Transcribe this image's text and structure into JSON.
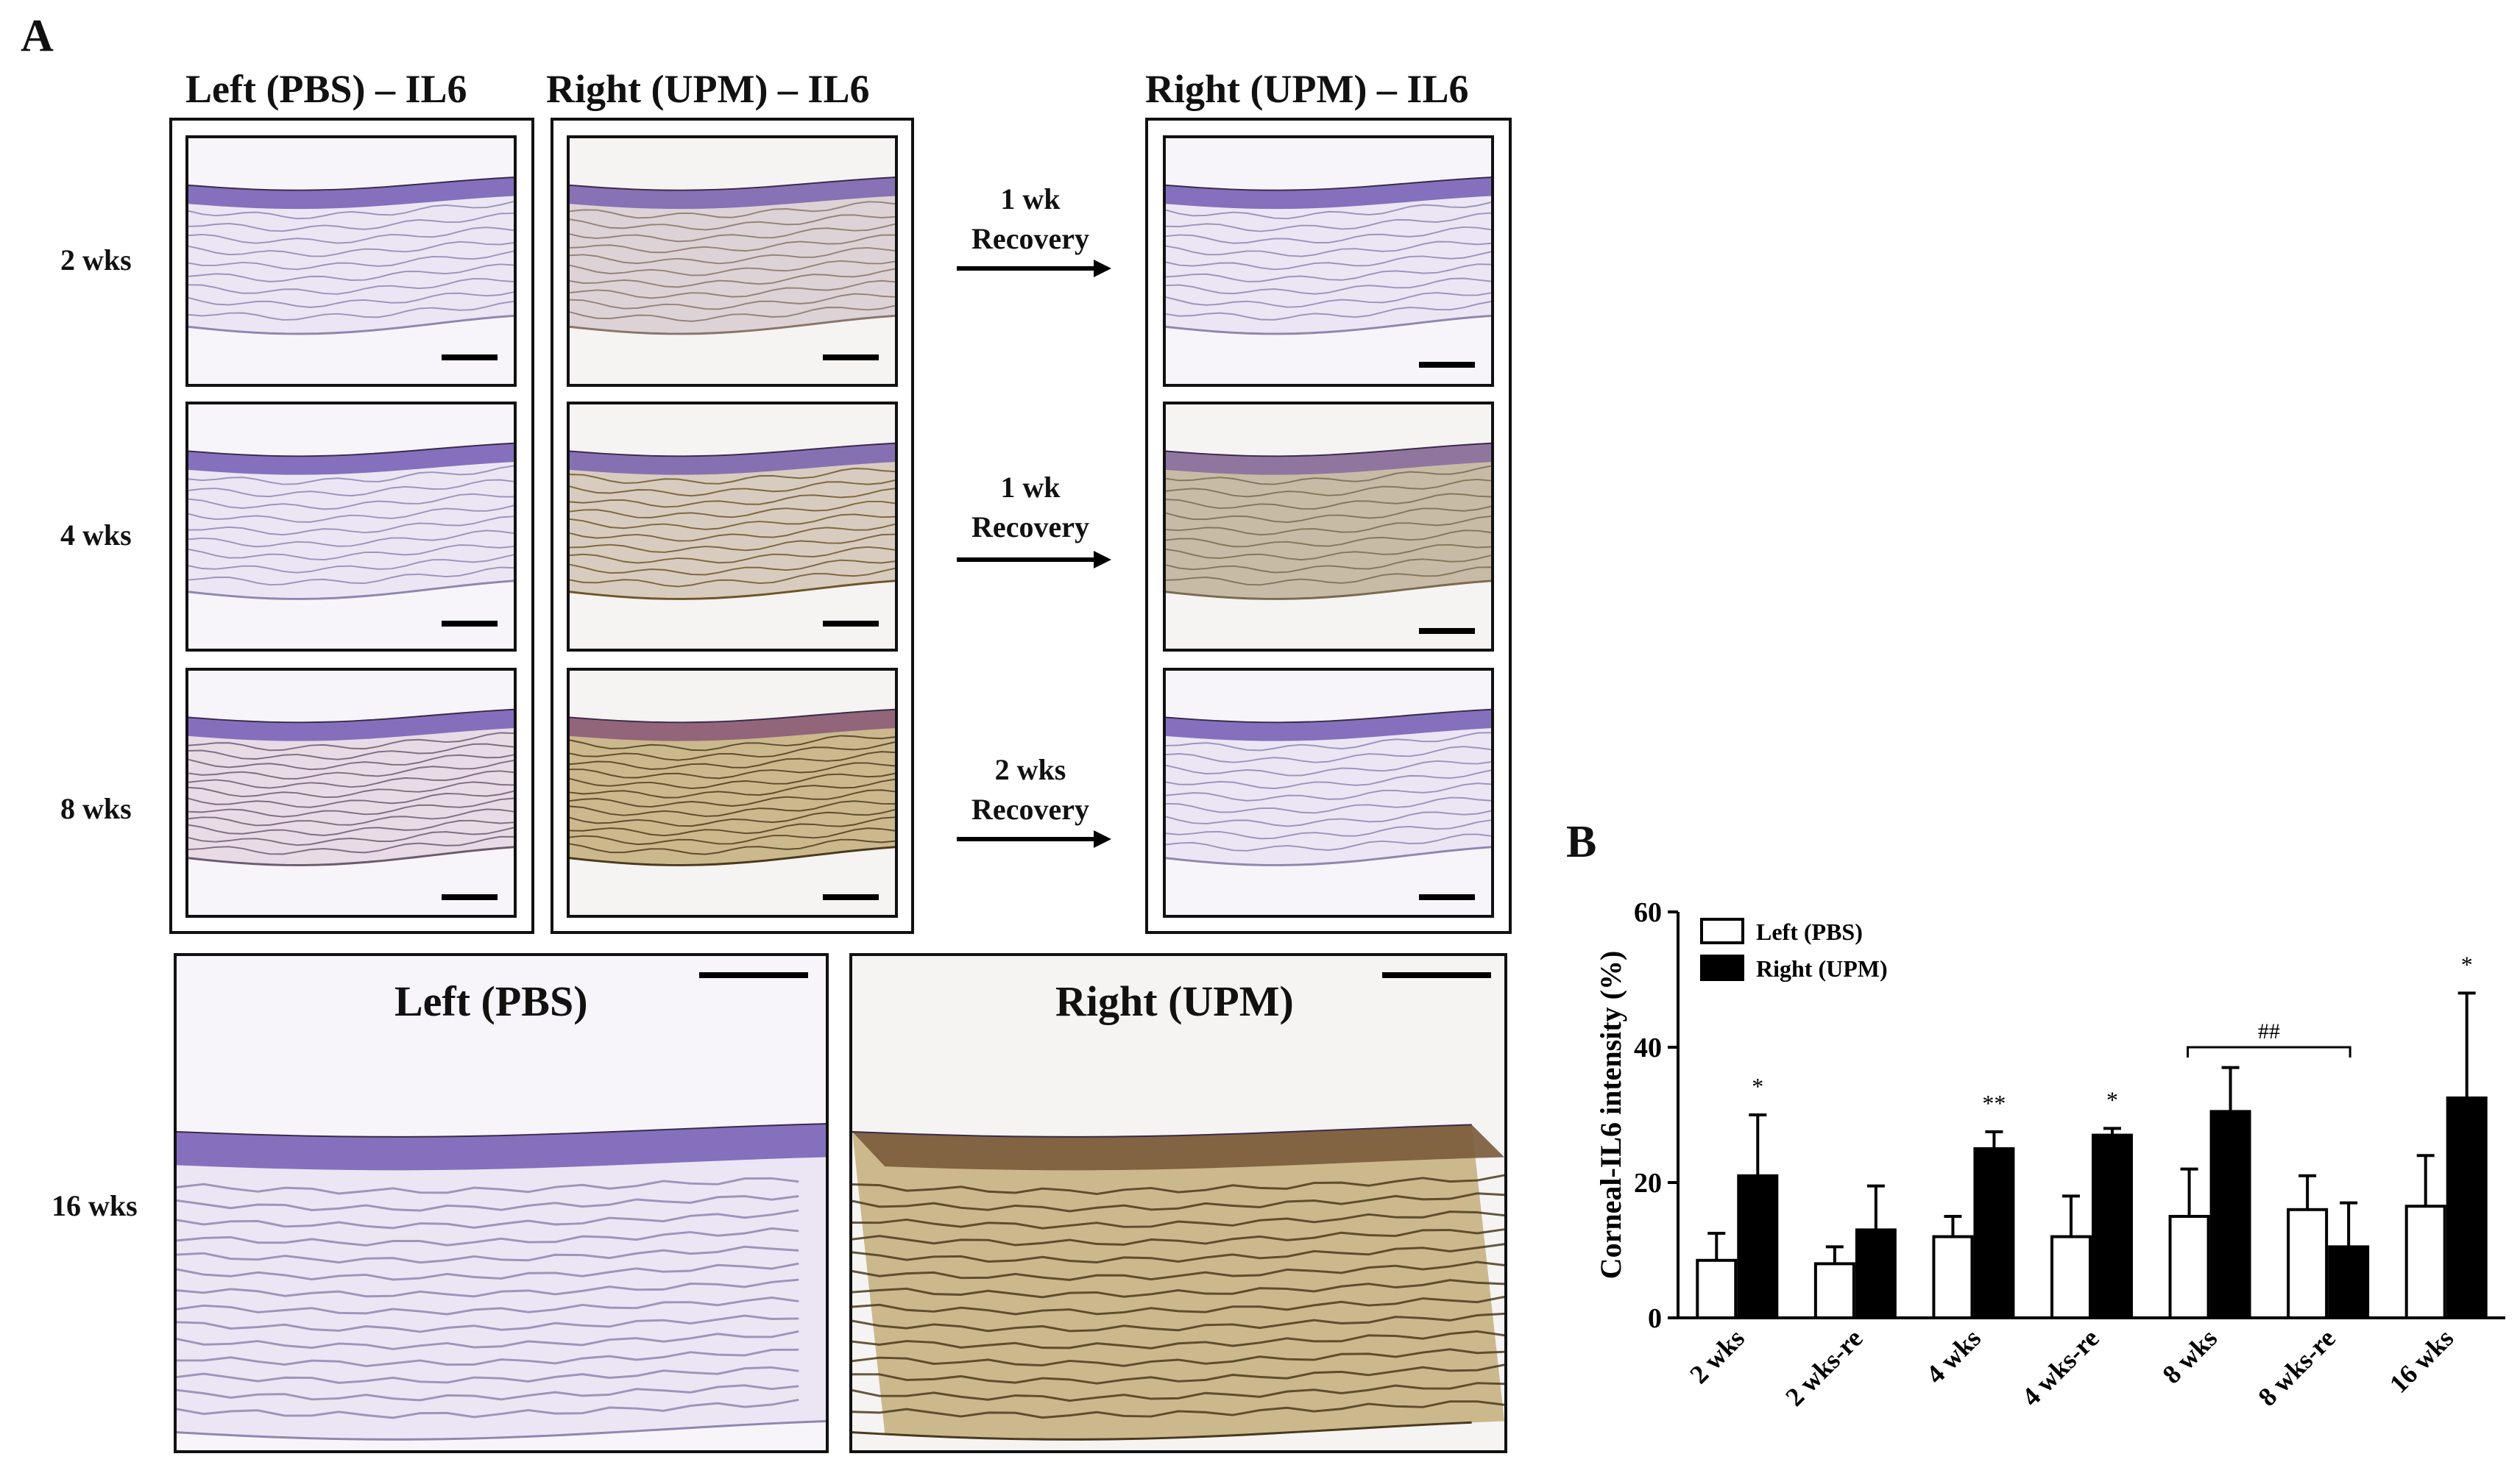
{
  "panel_a": {
    "letter": "A",
    "col_titles": [
      "Left (PBS) – IL6",
      "Right (UPM) – IL6",
      "Right (UPM) – IL6"
    ],
    "row_labels": [
      "2 wks",
      "4 wks",
      "8 wks",
      "16 wks"
    ],
    "recovery_labels": [
      {
        "line1": "1 wk",
        "line2": "Recovery"
      },
      {
        "line1": "1 wk",
        "line2": "Recovery"
      },
      {
        "line1": "2 wks",
        "line2": "Recovery"
      }
    ],
    "big_titles": [
      "Left (PBS)",
      "Right (UPM)"
    ]
  },
  "panel_b": {
    "letter": "B"
  },
  "colors": {
    "pbs_stroma": "#ece6f4",
    "pbs_lamella": "#8f86b0",
    "epithelium": "#7a63b8",
    "upm_stroma": "#cbb88d",
    "upm_lamella": "#6e5628",
    "upm_dark": "#4a3a1c"
  },
  "chart_data": {
    "type": "bar",
    "ylabel": "Corneal-IL6 intensity (%)",
    "xlabel": "",
    "ylim": [
      0,
      60
    ],
    "yticks": [
      0,
      20,
      40,
      60
    ],
    "categories": [
      "2 wks",
      "2 wks-re",
      "4 wks",
      "4 wks-re",
      "8 wks",
      "8 wks-re",
      "16 wks"
    ],
    "series": [
      {
        "name": "Left (PBS)",
        "color": "#ffffff",
        "values": [
          8.5,
          8,
          12,
          12,
          15,
          16,
          16.5
        ],
        "errors": [
          4,
          2.5,
          3,
          6,
          7,
          5,
          7.5
        ]
      },
      {
        "name": "Right (UPM)",
        "color": "#000000",
        "values": [
          21,
          13,
          25,
          27,
          30.5,
          10.5,
          32.5
        ],
        "errors": [
          9,
          6.5,
          2.5,
          1,
          6.5,
          6.5,
          15.5
        ]
      }
    ],
    "significance": [
      "*",
      "",
      "**",
      "*",
      "",
      "",
      "*"
    ],
    "bracket": {
      "from": 4,
      "to": 5,
      "label": "##"
    },
    "legend_position": "top-left"
  }
}
